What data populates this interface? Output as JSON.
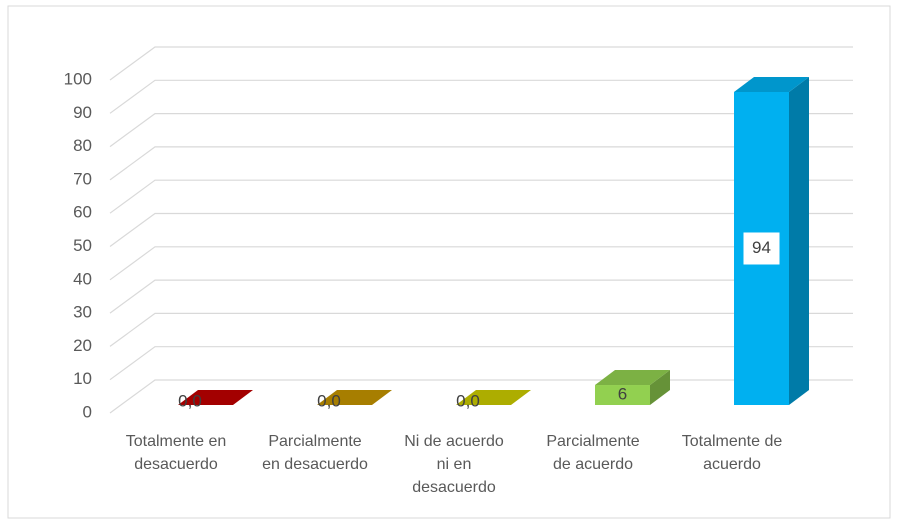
{
  "chart_data": {
    "type": "bar3d",
    "categories": [
      "Totalmente en desacuerdo",
      "Parcialmente en desacuerdo",
      "Ni de acuerdo ni en desacuerdo",
      "Parcialmente de acuerdo",
      "Totalmente de acuerdo"
    ],
    "values": [
      0,
      0,
      0,
      6,
      94
    ],
    "value_labels": [
      "0,0",
      "0,0",
      "0,0",
      "6",
      "94"
    ],
    "colors": [
      "#c00000",
      "#c59400",
      "#cccc00",
      "#92d050",
      "#00b0f0"
    ],
    "ylim": [
      0,
      100
    ],
    "yticks": [
      0,
      10,
      20,
      30,
      40,
      50,
      60,
      70,
      80,
      90,
      100
    ],
    "grid": true
  }
}
